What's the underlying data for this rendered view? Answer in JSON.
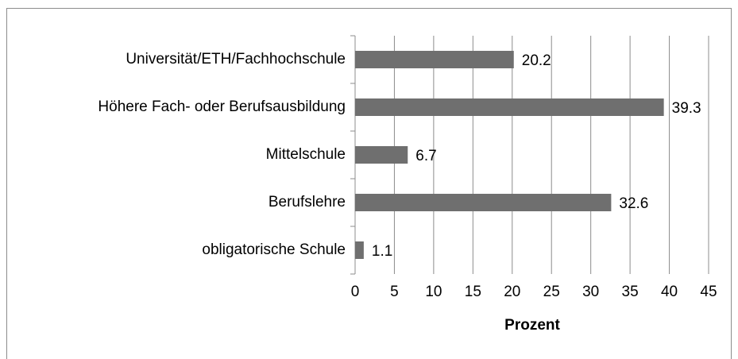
{
  "chart_data": {
    "type": "bar",
    "orientation": "horizontal",
    "categories": [
      "Universität/ETH/Fachhochschule",
      "Höhere Fach- oder Berufsausbildung",
      "Mittelschule",
      "Berufslehre",
      "obligatorische Schule"
    ],
    "values": [
      20.2,
      39.3,
      6.7,
      32.6,
      1.1
    ],
    "color": "#6f6f6f",
    "xlabel": "Prozent",
    "xlim": [
      0,
      45
    ],
    "xticks": [
      0,
      5,
      10,
      15,
      20,
      25,
      30,
      35,
      40,
      45
    ],
    "grid": true
  }
}
